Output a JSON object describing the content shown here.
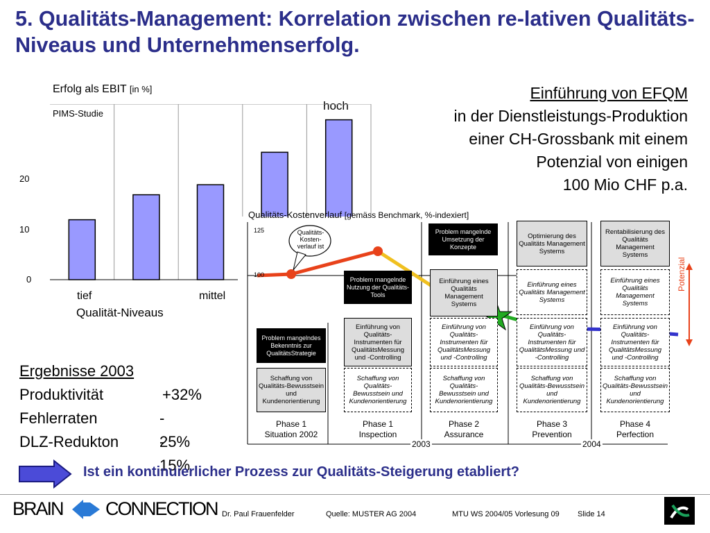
{
  "title": "5. Qualitäts-Management: Korrelation zwischen re-lativen Qualitäts-Niveaus und Unternehmenserfolg.",
  "bar_chart": {
    "ylabel": "Erfolg als EBIT",
    "ylabel_unit": "[in %]",
    "source_label": "PIMS-Studie",
    "xlabel": "Qualität-Niveaus",
    "ticks": [
      "0",
      "10",
      "20"
    ],
    "x_tick_left": "tief",
    "x_tick_mid": "mittel",
    "top_label": "hoch"
  },
  "chart_data": {
    "type": "bar",
    "title": "",
    "xlabel": "Qualität-Niveaus",
    "ylabel": "Erfolg als EBIT [in %]",
    "categories": [
      "tief",
      "",
      "mittel",
      "",
      "hoch"
    ],
    "values": [
      12,
      17,
      19,
      25.5,
      32
    ],
    "ylim": [
      0,
      33
    ],
    "color": "#9999ff"
  },
  "efqm_text": {
    "line1": "Einführung von EFQM",
    "line2": "in der Dienstleistungs-Produktion",
    "line3": "einer CH-Grossbank mit einem",
    "line4": "Potenzial von einigen",
    "line5": "100 Mio CHF p.a."
  },
  "cost_chart": {
    "label": "Qualitäts-Kostenverlauf",
    "label_suffix": "[gemäss Benchmark, %-indexiert]",
    "tick_125": "125",
    "tick_100": "100",
    "callout": "Qualitäts-Kosten-verlauf ist",
    "potenzial": "Potenzial",
    "year_2003": "2003",
    "year_2004": "2004",
    "colors": {
      "red": "#e8421a",
      "orange": "#f0c020",
      "green": "#22aa22",
      "blue": "#3333cc"
    }
  },
  "boxes": {
    "problem1": "Problem mangelndes Bekenntnis zur QualitätsStrategie",
    "problem2": "Problem mangelnde Nutzung der Qualitäts-Tools",
    "problem3": "Problem mangelnde Umsetzung der Konzepte",
    "schaffung_p1": "Schaffung von Qualitäts-Bewusstsein und Kundenorientierung",
    "schaffung": "Schaffung von Qualitäts-Bewusstsein und Kundenorientierung",
    "instr_p1": "Einführung von Qualitäts-Instrumenten für QualitätsMessung und -Controlling",
    "instr": "Einführung von Qualitäts-Instrumenten für QualitätsMessung und -Controlling",
    "ems_p2": "Einführung eines Qualitäts Management Systems",
    "ems": "Einführung eines Qualitäts Management Systems",
    "optimierung": "Optimierung des Qualitäts Management Systems",
    "rentabilisierung": "Rentabilisierung des Qualitäts Management Systems"
  },
  "phases": [
    {
      "name": "Phase 1",
      "sub": "Situation 2002"
    },
    {
      "name": "Phase 1",
      "sub": "Inspection"
    },
    {
      "name": "Phase 2",
      "sub": "Assurance"
    },
    {
      "name": "Phase 3",
      "sub": "Prevention"
    },
    {
      "name": "Phase 4",
      "sub": "Perfection"
    }
  ],
  "results": {
    "heading": "Ergebnisse 2003",
    "rows": [
      {
        "label": "Produktivität",
        "value": "+32%"
      },
      {
        "label": "Fehlerraten",
        "value": "- 25%"
      },
      {
        "label": "DLZ-Redukton",
        "value": "- 15%"
      }
    ]
  },
  "question": "Ist ein kontinuierlicher Prozess zur Qualitäts-Steigerung etabliert?",
  "footer": {
    "brain": "BRAIN",
    "connection": "CONNECTION",
    "author": "Dr. Paul Frauenfelder",
    "source": "Quelle: MUSTER AG 2004",
    "course": "MTU WS 2004/05 Vorlesung 09",
    "slide": "Slide 14"
  }
}
